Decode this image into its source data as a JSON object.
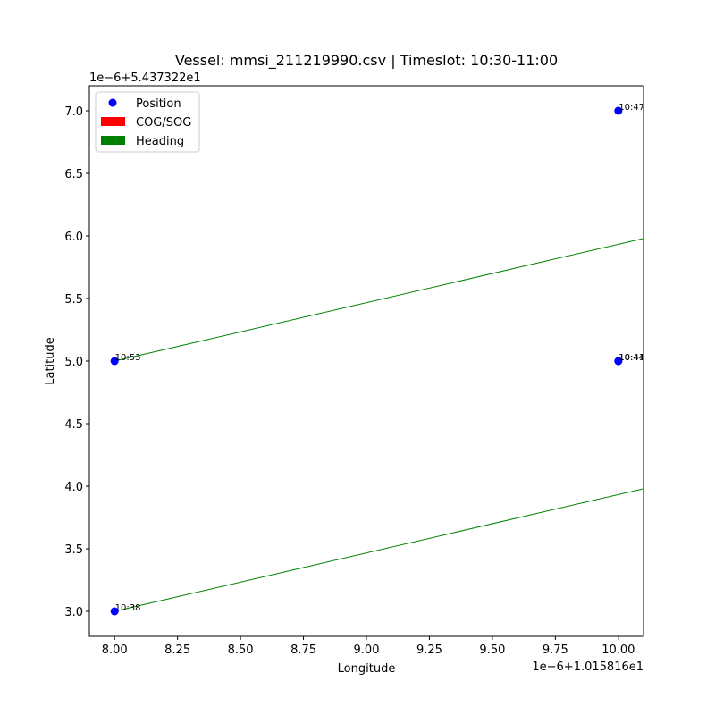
{
  "chart_data": {
    "type": "scatter",
    "title": "Vessel: mmsi_211219990.csv | Timeslot: 10:30-11:00",
    "xlabel": "Longitude",
    "ylabel": "Latitude",
    "x_offset_label": "1e−6+1.015816e1",
    "y_offset_label": "1e−6+5.437322e1",
    "xlim": [
      7.9,
      10.1
    ],
    "ylim": [
      2.8,
      7.2
    ],
    "x_ticks": [
      8.0,
      8.25,
      8.5,
      8.75,
      9.0,
      9.25,
      9.5,
      9.75,
      10.0
    ],
    "x_tick_labels": [
      "8.00",
      "8.25",
      "8.50",
      "8.75",
      "9.00",
      "9.25",
      "9.50",
      "9.75",
      "10.00"
    ],
    "y_ticks": [
      3.0,
      3.5,
      4.0,
      4.5,
      5.0,
      5.5,
      6.0,
      6.5,
      7.0
    ],
    "y_tick_labels": [
      "3.0",
      "3.5",
      "4.0",
      "4.5",
      "5.0",
      "5.5",
      "6.0",
      "6.5",
      "7.0"
    ],
    "grid": false,
    "legend_position": "top-left",
    "legend": [
      {
        "label": "Position",
        "marker": "circle",
        "color": "#0000ff"
      },
      {
        "label": "COG/SOG",
        "marker": "rect",
        "color": "#ff0000"
      },
      {
        "label": "Heading",
        "marker": "rect",
        "color": "#008000"
      }
    ],
    "positions": [
      {
        "x": 8.0,
        "y": 3.0,
        "label": "10:38"
      },
      {
        "x": 10.0,
        "y": 5.0,
        "label": "10:41"
      },
      {
        "x": 10.0,
        "y": 5.0,
        "label": "10:44"
      },
      {
        "x": 10.0,
        "y": 7.0,
        "label": "10:47"
      },
      {
        "x": 8.0,
        "y": 5.0,
        "label": "10:53"
      }
    ],
    "heading_lines": [
      {
        "x1": 8.0,
        "y1": 3.0,
        "x2": 10.1,
        "y2": 3.98
      },
      {
        "x1": 8.0,
        "y1": 5.0,
        "x2": 10.1,
        "y2": 5.98
      }
    ],
    "colors": {
      "position": "#0000ff",
      "heading": "#008000",
      "cog": "#ff0000"
    }
  }
}
